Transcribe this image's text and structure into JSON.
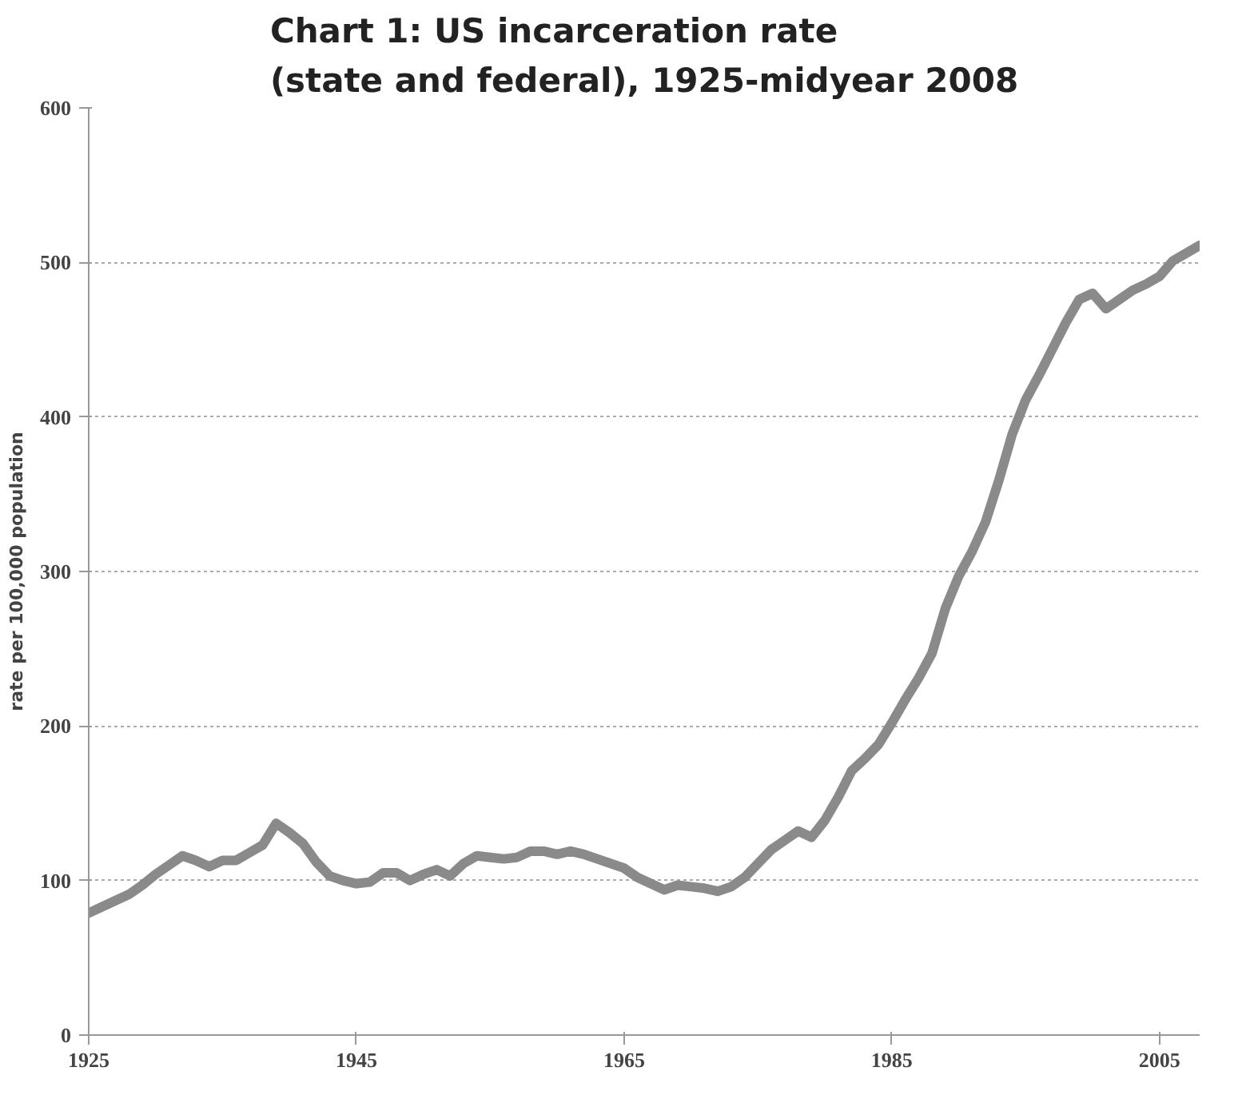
{
  "chart_data": {
    "type": "line",
    "title": "Chart 1: US incarceration rate\n(state and federal), 1925-midyear 2008",
    "ylabel": "rate per 100,000 population",
    "x": [
      1925,
      1926,
      1927,
      1928,
      1929,
      1930,
      1931,
      1932,
      1933,
      1934,
      1935,
      1936,
      1937,
      1938,
      1939,
      1940,
      1941,
      1942,
      1943,
      1944,
      1945,
      1946,
      1947,
      1948,
      1949,
      1950,
      1951,
      1952,
      1953,
      1954,
      1955,
      1956,
      1957,
      1958,
      1959,
      1960,
      1961,
      1962,
      1963,
      1964,
      1965,
      1966,
      1967,
      1968,
      1969,
      1970,
      1971,
      1972,
      1973,
      1974,
      1975,
      1976,
      1977,
      1978,
      1979,
      1980,
      1981,
      1982,
      1983,
      1984,
      1985,
      1986,
      1987,
      1988,
      1989,
      1990,
      1991,
      1992,
      1993,
      1994,
      1995,
      1996,
      1997,
      1998,
      1999,
      2000,
      2001,
      2002,
      2003,
      2004,
      2005,
      2006,
      2007,
      2008
    ],
    "series": [
      {
        "color": "#8a8a8a",
        "values": [
          79,
          83,
          87,
          91,
          97,
          104,
          110,
          116,
          113,
          109,
          113,
          113,
          118,
          123,
          137,
          131,
          124,
          112,
          103,
          100,
          98,
          99,
          105,
          105,
          100,
          104,
          107,
          103,
          111,
          116,
          115,
          114,
          115,
          119,
          119,
          117,
          119,
          117,
          114,
          111,
          108,
          102,
          98,
          94,
          97,
          96,
          95,
          93,
          96,
          102,
          111,
          120,
          126,
          132,
          128,
          139,
          154,
          171,
          179,
          188,
          202,
          217,
          231,
          247,
          276,
          297,
          313,
          332,
          359,
          389,
          411,
          427,
          444,
          461,
          476,
          480,
          470,
          476,
          482,
          486,
          491,
          501,
          506,
          511
        ]
      }
    ],
    "xlim": [
      1925,
      2008
    ],
    "ylim": [
      0,
      600
    ],
    "xticks": [
      1925,
      1945,
      1965,
      1985,
      2005
    ],
    "yticks": [
      0,
      100,
      200,
      300,
      400,
      500,
      600
    ],
    "grid": "y",
    "marker": "none",
    "line_style": "solid"
  }
}
